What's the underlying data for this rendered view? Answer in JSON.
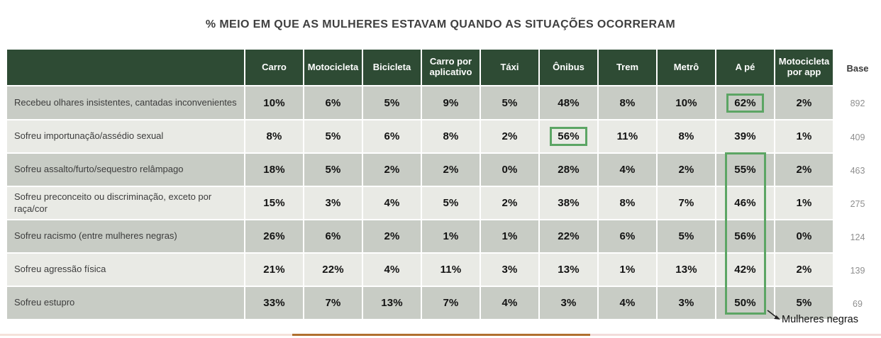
{
  "chart_data": {
    "type": "table",
    "title": "% MEIO EM QUE AS MULHERES ESTAVAM QUANDO AS SITUAÇÕES OCORRERAM",
    "unit": "%",
    "columns": [
      "Carro",
      "Motocicleta",
      "Bicicleta",
      "Carro por aplicativo",
      "Táxi",
      "Ônibus",
      "Trem",
      "Metrô",
      "A pé",
      "Motocicleta por app"
    ],
    "base_column": "Base",
    "rows": [
      {
        "label": "Recebeu olhares insistentes, cantadas inconvenientes",
        "values": [
          10,
          6,
          5,
          9,
          5,
          48,
          8,
          10,
          62,
          2
        ],
        "base": 892
      },
      {
        "label": "Sofreu importunação/assédio sexual",
        "values": [
          8,
          5,
          6,
          8,
          2,
          56,
          11,
          8,
          39,
          1
        ],
        "base": 409
      },
      {
        "label": "Sofreu assalto/furto/sequestro relâmpago",
        "values": [
          18,
          5,
          2,
          2,
          0,
          28,
          4,
          2,
          55,
          2
        ],
        "base": 463
      },
      {
        "label": "Sofreu preconceito ou discriminação, exceto por raça/cor",
        "values": [
          15,
          3,
          4,
          5,
          2,
          38,
          8,
          7,
          46,
          1
        ],
        "base": 275
      },
      {
        "label": "Sofreu racismo (entre mulheres negras)",
        "values": [
          26,
          6,
          2,
          1,
          1,
          22,
          6,
          5,
          56,
          0
        ],
        "base": 124
      },
      {
        "label": "Sofreu agressão física",
        "values": [
          21,
          22,
          4,
          11,
          3,
          13,
          1,
          13,
          42,
          2
        ],
        "base": 139
      },
      {
        "label": "Sofreu estupro",
        "values": [
          33,
          7,
          13,
          7,
          4,
          3,
          4,
          3,
          50,
          5
        ],
        "base": 69
      }
    ],
    "highlights": {
      "cell_boxes": [
        {
          "row": 0,
          "col": 8,
          "value": "62%"
        },
        {
          "row": 1,
          "col": 5,
          "value": "56%"
        }
      ],
      "column_box": {
        "col": 8,
        "row_start": 2,
        "row_end": 6,
        "values": [
          "55%",
          "46%",
          "56%",
          "42%",
          "50%"
        ]
      },
      "color": "#5CA564"
    },
    "legend_position": "bottom-right"
  },
  "annotation": {
    "label": "Mulheres negras",
    "arrow_icon": "arrow-right-icon"
  },
  "colors": {
    "header_bg": "#2E4B34",
    "header_text": "#FFFFFF",
    "row_odd_bg": "#C8CCC5",
    "row_even_bg": "#E9EAE5",
    "highlight_border": "#5CA564",
    "base_text": "#8F8F8F",
    "title_text": "#3F3F3F",
    "divider_brown": "#B16F2F",
    "divider_pink": "#F5E2DA"
  }
}
